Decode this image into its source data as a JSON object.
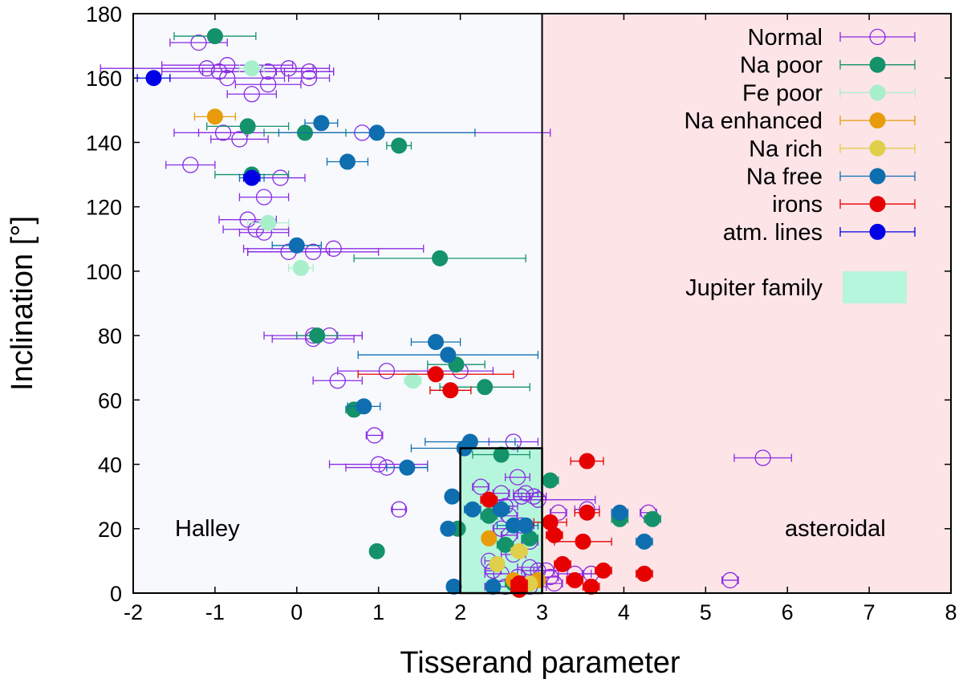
{
  "chart_data": {
    "type": "scatter",
    "title": "",
    "xlabel": "Tisserand parameter",
    "ylabel": "Inclination [°]",
    "xlim": [
      -2,
      8
    ],
    "ylim": [
      0,
      180
    ],
    "xticks": [
      "-2",
      "-1",
      "0",
      "1",
      "2",
      "3",
      "4",
      "5",
      "6",
      "7",
      "8"
    ],
    "yticks": [
      "0",
      "20",
      "40",
      "60",
      "80",
      "100",
      "120",
      "140",
      "160",
      "180"
    ],
    "regions": [
      {
        "name": "Halley",
        "label": "Halley",
        "x": [
          -2,
          3
        ],
        "y": [
          0,
          180
        ],
        "color": "#f7f9fd"
      },
      {
        "name": "asteroidal",
        "label": "asteroidal",
        "x": [
          3,
          8
        ],
        "y": [
          0,
          180
        ],
        "color": "#fde4e7"
      },
      {
        "name": "Jupiter family",
        "label": "Jupiter family",
        "x": [
          2,
          3
        ],
        "y": [
          0,
          45
        ],
        "color": "#b6f6dc"
      }
    ],
    "legend_position": "top-right",
    "series": [
      {
        "name": "Normal",
        "color": "#8a2be2",
        "marker": "open-circle",
        "points": [
          [
            -1.2,
            171,
            0.35
          ],
          [
            -1.1,
            163,
            1.3
          ],
          [
            -0.95,
            162,
            0.7
          ],
          [
            -0.85,
            164,
            0.8
          ],
          [
            -0.85,
            160,
            0.7
          ],
          [
            -0.35,
            162,
            0.8
          ],
          [
            -0.1,
            163,
            0.5
          ],
          [
            0.15,
            162,
            0.3
          ],
          [
            -0.35,
            158,
            0.4
          ],
          [
            -0.55,
            155,
            0.3
          ],
          [
            0.15,
            160,
            0.25
          ],
          [
            -0.9,
            143,
            0.3
          ],
          [
            -0.7,
            141,
            0.35
          ],
          [
            -1.3,
            133,
            0.3
          ],
          [
            -0.2,
            129,
            0.3
          ],
          [
            -0.4,
            123,
            0.3
          ],
          [
            -0.6,
            116,
            0.35
          ],
          [
            -0.5,
            113,
            0.4
          ],
          [
            -0.4,
            112,
            0.3
          ],
          [
            -0.1,
            106,
            0.5
          ],
          [
            0.2,
            106,
            0.8
          ],
          [
            0.45,
            107,
            1.1
          ],
          [
            0.8,
            143,
            2.3
          ],
          [
            0.2,
            79,
            0.5
          ],
          [
            0.2,
            80,
            0.6
          ],
          [
            0.4,
            80,
            0.4
          ],
          [
            0.5,
            66,
            0.3
          ],
          [
            1.1,
            69,
            0.6
          ],
          [
            2.0,
            69,
            0.4
          ],
          [
            0.95,
            49,
            0.1
          ],
          [
            1.0,
            40,
            0.6
          ],
          [
            1.1,
            39,
            0.5
          ],
          [
            1.25,
            26,
            0.08
          ],
          [
            2.65,
            47,
            0.3
          ],
          [
            2.25,
            33,
            0.1
          ],
          [
            2.5,
            31,
            0.1
          ],
          [
            2.7,
            36,
            0.15
          ],
          [
            2.75,
            30,
            0.1
          ],
          [
            2.8,
            31,
            0.15
          ],
          [
            2.9,
            30,
            0.15
          ],
          [
            2.95,
            29,
            0.7
          ],
          [
            2.55,
            27,
            0.15
          ],
          [
            2.6,
            24,
            0.1
          ],
          [
            2.75,
            21,
            0.15
          ],
          [
            2.5,
            20,
            0.1
          ],
          [
            2.6,
            18,
            0.1
          ],
          [
            2.85,
            16,
            0.1
          ],
          [
            2.65,
            12,
            0.15
          ],
          [
            2.35,
            10,
            0.05
          ],
          [
            2.4,
            7,
            0.1
          ],
          [
            2.5,
            6,
            0.2
          ],
          [
            2.7,
            5,
            0.1
          ],
          [
            2.85,
            8,
            0.15
          ],
          [
            2.95,
            7,
            0.2
          ],
          [
            2.75,
            3,
            0.2
          ],
          [
            2.85,
            2,
            0.2
          ],
          [
            2.55,
            2,
            0.25
          ],
          [
            3.05,
            7,
            0.15
          ],
          [
            3.1,
            5,
            0.1
          ],
          [
            3.15,
            3,
            0.1
          ],
          [
            3.2,
            25,
            0.1
          ],
          [
            3.4,
            6,
            0.2
          ],
          [
            3.55,
            26,
            0.15
          ],
          [
            3.6,
            6,
            0.1
          ],
          [
            4.3,
            25,
            0.1
          ],
          [
            5.3,
            4,
            0.1
          ],
          [
            5.7,
            42,
            0.35
          ]
        ]
      },
      {
        "name": "Na poor",
        "color": "#14926a",
        "marker": "filled-circle",
        "points": [
          [
            -1.0,
            173,
            0.5
          ],
          [
            -0.6,
            145,
            0.5
          ],
          [
            0.1,
            143,
            0.5
          ],
          [
            1.25,
            139,
            0.15
          ],
          [
            -0.55,
            130,
            0.45
          ],
          [
            1.75,
            104,
            1.05
          ],
          [
            0.25,
            80,
            0.25
          ],
          [
            1.95,
            71,
            0.35
          ],
          [
            2.3,
            64,
            0.55
          ],
          [
            0.7,
            57,
            0.1
          ],
          [
            2.5,
            43,
            0.35
          ],
          [
            3.1,
            35,
            0.1
          ],
          [
            3.95,
            23,
            0.1
          ],
          [
            4.35,
            23,
            0.1
          ],
          [
            0.98,
            13,
            0.05
          ],
          [
            1.97,
            20,
            0.05
          ],
          [
            2.35,
            24,
            0.1
          ],
          [
            2.55,
            15,
            0.1
          ],
          [
            2.85,
            17,
            0.1
          ],
          [
            2.65,
            3,
            0.1
          ]
        ]
      },
      {
        "name": "Fe poor",
        "color": "#a8efcc",
        "marker": "filled-circle",
        "points": [
          [
            -0.55,
            163,
            0.15
          ],
          [
            -0.35,
            115,
            0.25
          ],
          [
            0.05,
            101,
            0.15
          ],
          [
            1.42,
            66,
            0.1
          ]
        ]
      },
      {
        "name": "Na enhanced",
        "color": "#e89c0b",
        "marker": "filled-circle",
        "points": [
          [
            -1.0,
            148,
            0.25
          ],
          [
            2.35,
            17,
            0.05
          ],
          [
            2.65,
            4,
            0.05
          ],
          [
            2.95,
            4,
            0.05
          ]
        ]
      },
      {
        "name": "Na rich",
        "color": "#dfcf4a",
        "marker": "filled-circle",
        "points": [
          [
            2.72,
            13,
            0.1
          ],
          [
            2.45,
            9,
            0.05
          ],
          [
            2.85,
            3,
            0.05
          ]
        ]
      },
      {
        "name": "Na free",
        "color": "#0f6eb0",
        "marker": "filled-circle",
        "points": [
          [
            0.3,
            146,
            0.2
          ],
          [
            0.98,
            143,
            1.2
          ],
          [
            0.62,
            134,
            0.25
          ],
          [
            -0.55,
            129,
            0.15
          ],
          [
            0.0,
            108,
            0.3
          ],
          [
            1.7,
            78,
            0.3
          ],
          [
            1.85,
            74,
            1.1
          ],
          [
            0.82,
            58,
            0.2
          ],
          [
            1.35,
            39,
            0.25
          ],
          [
            2.12,
            47,
            0.55
          ],
          [
            2.05,
            45,
            0.65
          ],
          [
            1.9,
            30,
            0.05
          ],
          [
            2.15,
            26,
            0.1
          ],
          [
            2.5,
            26,
            0.1
          ],
          [
            2.8,
            21,
            0.15
          ],
          [
            1.85,
            20,
            0.05
          ],
          [
            2.65,
            21,
            0.2
          ],
          [
            3.95,
            25,
            0.1
          ],
          [
            4.25,
            16,
            0.1
          ],
          [
            1.92,
            2,
            0.05
          ],
          [
            2.4,
            2,
            0.05
          ]
        ]
      },
      {
        "name": "irons",
        "color": "#e60000",
        "marker": "filled-circle",
        "points": [
          [
            1.7,
            68,
            0.95
          ],
          [
            1.88,
            63,
            0.25
          ],
          [
            3.55,
            41,
            0.2
          ],
          [
            2.35,
            29,
            0.1
          ],
          [
            3.55,
            25,
            0.15
          ],
          [
            3.1,
            22,
            0.2
          ],
          [
            3.15,
            18,
            0.1
          ],
          [
            3.5,
            16,
            0.35
          ],
          [
            3.25,
            9,
            0.1
          ],
          [
            3.75,
            7,
            0.1
          ],
          [
            4.25,
            6,
            0.1
          ],
          [
            3.4,
            4,
            0.1
          ],
          [
            3.6,
            2,
            0.1
          ],
          [
            2.72,
            3,
            0.1
          ],
          [
            2.72,
            1,
            0.1
          ]
        ]
      },
      {
        "name": "atm. lines",
        "color": "#0000e6",
        "marker": "filled-circle",
        "points": [
          [
            -1.75,
            160,
            0.2
          ],
          [
            -0.55,
            129,
            0.1
          ]
        ]
      }
    ]
  }
}
